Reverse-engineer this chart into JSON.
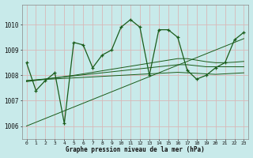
{
  "xlabel": "Graphe pression niveau de la mer (hPa)",
  "bg_color": "#c8eaea",
  "grid_color": "#d8b8b8",
  "line_color": "#1a5c1a",
  "ylim": [
    1005.5,
    1010.8
  ],
  "xlim": [
    -0.5,
    23.5
  ],
  "yticks": [
    1006,
    1007,
    1008,
    1009,
    1010
  ],
  "xtick_labels": [
    "0",
    "1",
    "2",
    "3",
    "4",
    "5",
    "6",
    "7",
    "8",
    "9",
    "10",
    "11",
    "12",
    "13",
    "14",
    "15",
    "16",
    "17",
    "18",
    "19",
    "20",
    "21",
    "22",
    "23"
  ],
  "main_series": [
    1008.5,
    1007.4,
    1007.8,
    1008.1,
    1006.1,
    1009.3,
    1009.2,
    1008.3,
    1008.8,
    1009.0,
    1009.9,
    1010.2,
    1009.9,
    1008.0,
    1009.8,
    1009.8,
    1009.5,
    1008.2,
    1007.85,
    1008.0,
    1008.3,
    1008.5,
    1009.4,
    1009.7
  ],
  "smooth1": [
    1007.8,
    1007.82,
    1007.84,
    1007.86,
    1007.88,
    1007.9,
    1007.92,
    1007.94,
    1007.96,
    1007.98,
    1008.0,
    1008.02,
    1008.04,
    1008.06,
    1008.08,
    1008.1,
    1008.12,
    1008.1,
    1008.08,
    1008.06,
    1008.04,
    1008.06,
    1008.08,
    1008.1
  ],
  "smooth2": [
    1007.78,
    1007.82,
    1007.86,
    1007.9,
    1007.94,
    1007.98,
    1008.02,
    1008.06,
    1008.1,
    1008.14,
    1008.18,
    1008.22,
    1008.26,
    1008.3,
    1008.34,
    1008.38,
    1008.42,
    1008.42,
    1008.38,
    1008.34,
    1008.34,
    1008.34,
    1008.34,
    1008.34
  ],
  "smooth3": [
    1007.75,
    1007.8,
    1007.85,
    1007.9,
    1007.95,
    1008.0,
    1008.06,
    1008.12,
    1008.18,
    1008.24,
    1008.3,
    1008.36,
    1008.42,
    1008.48,
    1008.54,
    1008.6,
    1008.66,
    1008.66,
    1008.6,
    1008.54,
    1008.5,
    1008.5,
    1008.52,
    1008.55
  ],
  "diagonal": [
    1006.0,
    1006.15,
    1006.3,
    1006.45,
    1006.6,
    1006.75,
    1006.9,
    1007.05,
    1007.2,
    1007.35,
    1007.5,
    1007.65,
    1007.8,
    1007.95,
    1008.1,
    1008.25,
    1008.4,
    1008.55,
    1008.7,
    1008.85,
    1009.0,
    1009.15,
    1009.3,
    1009.45
  ]
}
